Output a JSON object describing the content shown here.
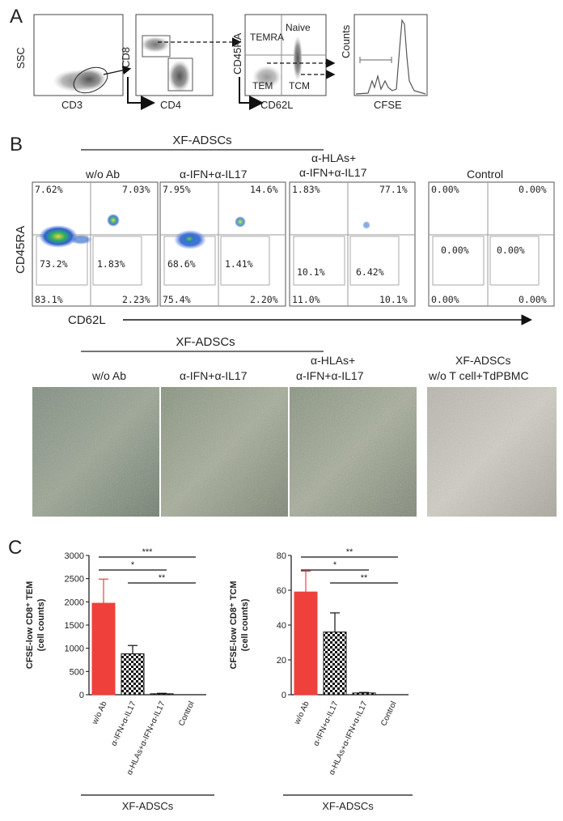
{
  "panelA": {
    "label": "A",
    "plot1": {
      "y": "SSC",
      "x": "CD3"
    },
    "plot2": {
      "y": "CD8",
      "x": "CD4"
    },
    "plot3": {
      "y": "CD45RA",
      "x": "CD62L",
      "q_tl": "TEMRA",
      "q_tr": "Naive",
      "q_bl": "TEM",
      "q_br": "TCM"
    },
    "plot4": {
      "y": "Counts",
      "x": "CFSE"
    }
  },
  "panelB": {
    "label": "B",
    "group_label": "XF-ADSCs",
    "axis_y": "CD45RA",
    "axis_x": "CD62L",
    "plots": [
      {
        "title": "w/o Ab",
        "ul": "7.62%",
        "ur": "7.03%",
        "gl": "73.2%",
        "gr": "1.83%",
        "ll": "83.1%",
        "lr": "2.23%"
      },
      {
        "title": "α-IFN+α-IL17",
        "ul": "7.95%",
        "ur": "14.6%",
        "gl": "68.6%",
        "gr": "1.41%",
        "ll": "75.4%",
        "lr": "2.20%"
      },
      {
        "title1": "α-HLAs+",
        "title2": "α-IFN+α-IL17",
        "ul": "1.83%",
        "ur": "77.1%",
        "gl": "10.1%",
        "gr": "6.42%",
        "ll": "11.0%",
        "lr": "10.1%"
      },
      {
        "title": "Control",
        "ul": "0.00%",
        "ur": "0.00%",
        "gl": "0.00%",
        "gr": "0.00%",
        "ll": "0.00%",
        "lr": "0.00%"
      }
    ],
    "micro_group_label": "XF-ADSCs",
    "micro": [
      {
        "title": "w/o Ab"
      },
      {
        "title": "α-IFN+α-IL17"
      },
      {
        "title1": "α-HLAs+",
        "title2": "α-IFN+α-IL17"
      },
      {
        "title1": "XF-ADSCs",
        "title2": "w/o T cell+TdPBMC"
      }
    ]
  },
  "panelC": {
    "label": "C",
    "colors": {
      "red": "#f0403c",
      "black": "#111111"
    },
    "chart_data": [
      {
        "type": "bar",
        "ylabel_line1": "CFSE-low CD8⁺ TEM",
        "ylabel_line2": "(cell counts)",
        "ylim": [
          0,
          3000
        ],
        "yticks": [
          "0",
          "500",
          "1000",
          "1500",
          "2000",
          "2500",
          "3000"
        ],
        "categories": [
          "w/o Ab",
          "α-IFN+α-IL17",
          "α-HLAs+α-IFN+α-IL17",
          "Control"
        ],
        "values": [
          1970,
          880,
          20,
          0
        ],
        "errors": [
          520,
          180,
          10,
          0
        ],
        "significance": [
          "***",
          "*",
          "**"
        ],
        "group_label": "XF-ADSCs"
      },
      {
        "type": "bar",
        "ylabel_line1": "CFSE-low CD8⁺ TCM",
        "ylabel_line2": "(cell counts)",
        "ylim": [
          0,
          80
        ],
        "yticks": [
          "0",
          "20",
          "40",
          "60",
          "80"
        ],
        "categories": [
          "w/o Ab",
          "α-IFN+α-IL17",
          "α-HLAs+α-IFN+α-IL17",
          "Control"
        ],
        "values": [
          59,
          36,
          1,
          0
        ],
        "errors": [
          12,
          11,
          0.3,
          0
        ],
        "significance": [
          "**",
          "*",
          "**"
        ],
        "group_label": "XF-ADSCs"
      }
    ]
  }
}
